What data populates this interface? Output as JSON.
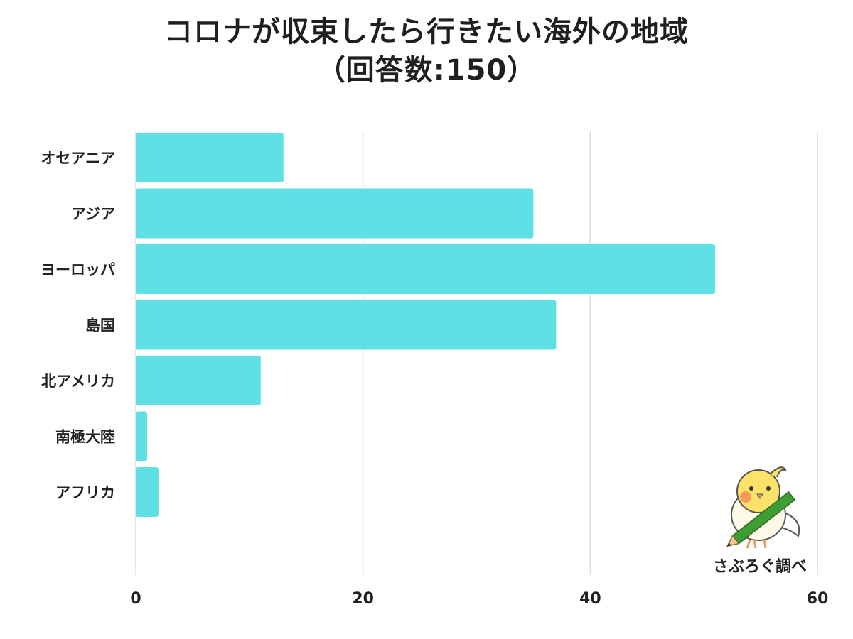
{
  "title": {
    "line1": "コロナが収束したら行きたい海外の地域",
    "line2": "（回答数:150）"
  },
  "credit": "さぶろぐ調べ",
  "colors": {
    "bar": "#5ee0e4",
    "grid": "#dddddd"
  },
  "chart_data": {
    "type": "bar",
    "orientation": "horizontal",
    "categories": [
      "オセアニア",
      "アジア",
      "ヨーロッパ",
      "島国",
      "北アメリカ",
      "南極大陸",
      "アフリカ"
    ],
    "values": [
      13,
      35,
      51,
      37,
      11,
      1,
      2
    ],
    "xlim": [
      0,
      60
    ],
    "xticks": [
      0,
      20,
      40,
      60
    ],
    "grid": true,
    "title": "コロナが収束したら行きたい海外の地域（回答数:150）",
    "xlabel": "",
    "ylabel": ""
  }
}
